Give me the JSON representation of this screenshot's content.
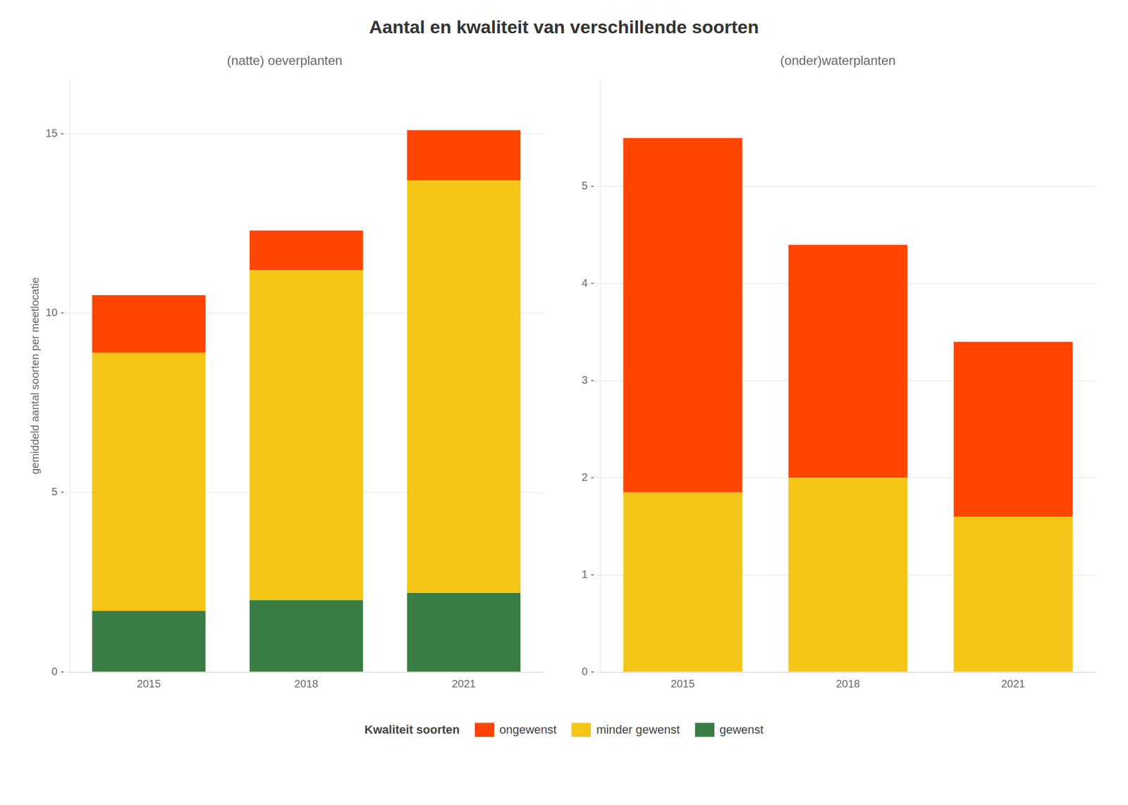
{
  "title": "Aantal en kwaliteit van verschillende soorten",
  "legend_title": "Kwaliteit soorten",
  "legend": "bottom",
  "chart_data": [
    {
      "type": "bar",
      "title": "(natte) oeverplanten",
      "ylabel": "gemiddeld aantal soorten per meetlocatie",
      "categories": [
        "2015",
        "2018",
        "2021"
      ],
      "series": [
        {
          "name": "gewenst",
          "color": "#3A7D44",
          "values": [
            1.7,
            2.0,
            2.2
          ]
        },
        {
          "name": "minder gewenst",
          "color": "#F5C518",
          "values": [
            7.2,
            9.2,
            11.5
          ]
        },
        {
          "name": "ongewenst",
          "color": "#FF4500",
          "values": [
            1.6,
            1.1,
            1.4
          ]
        }
      ],
      "stacked": true,
      "ylim": [
        0,
        16.5
      ],
      "yticks": [
        {
          "value": 0,
          "label": "0 -"
        },
        {
          "value": 5,
          "label": "5 -"
        },
        {
          "value": 10,
          "label": "10 -"
        },
        {
          "value": 15,
          "label": "15 -"
        }
      ],
      "grid": true
    },
    {
      "type": "bar",
      "title": "(onder)waterplanten",
      "categories": [
        "2015",
        "2018",
        "2021"
      ],
      "series": [
        {
          "name": "gewenst",
          "color": "#3A7D44",
          "values": [
            0.0,
            0.0,
            0.0
          ]
        },
        {
          "name": "minder gewenst",
          "color": "#F5C518",
          "values": [
            1.85,
            2.0,
            1.6
          ]
        },
        {
          "name": "ongewenst",
          "color": "#FF4500",
          "values": [
            3.65,
            2.4,
            1.8
          ]
        }
      ],
      "stacked": true,
      "ylim": [
        0,
        6.1
      ],
      "yticks": [
        {
          "value": 0,
          "label": "0 -"
        },
        {
          "value": 1,
          "label": "1 -"
        },
        {
          "value": 2,
          "label": "2 -"
        },
        {
          "value": 3,
          "label": "3 -"
        },
        {
          "value": 4,
          "label": "4 -"
        },
        {
          "value": 5,
          "label": "5 -"
        }
      ],
      "grid": true
    }
  ]
}
